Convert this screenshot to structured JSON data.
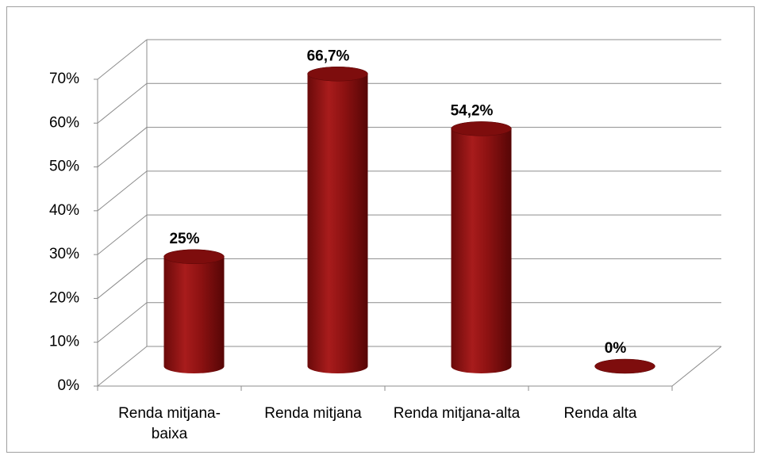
{
  "chart_data": {
    "type": "bar3d",
    "categories": [
      "Renda mitjana-baixa",
      "Renda mitjana",
      "Renda mitjana-alta",
      "Renda alta"
    ],
    "values": [
      25,
      66.7,
      54.2,
      0
    ],
    "value_labels": [
      "25%",
      "66,7%",
      "54,2%",
      "0%"
    ],
    "color": "#9a1414",
    "ylim": [
      0,
      70
    ],
    "yticks": [
      {
        "value": 0,
        "label": "0%"
      },
      {
        "value": 10,
        "label": "10%"
      },
      {
        "value": 20,
        "label": "20%"
      },
      {
        "value": 30,
        "label": "30%"
      },
      {
        "value": 40,
        "label": "40%"
      },
      {
        "value": 50,
        "label": "50%"
      },
      {
        "value": 60,
        "label": "60%"
      },
      {
        "value": 70,
        "label": "70%"
      }
    ],
    "grid": true
  }
}
